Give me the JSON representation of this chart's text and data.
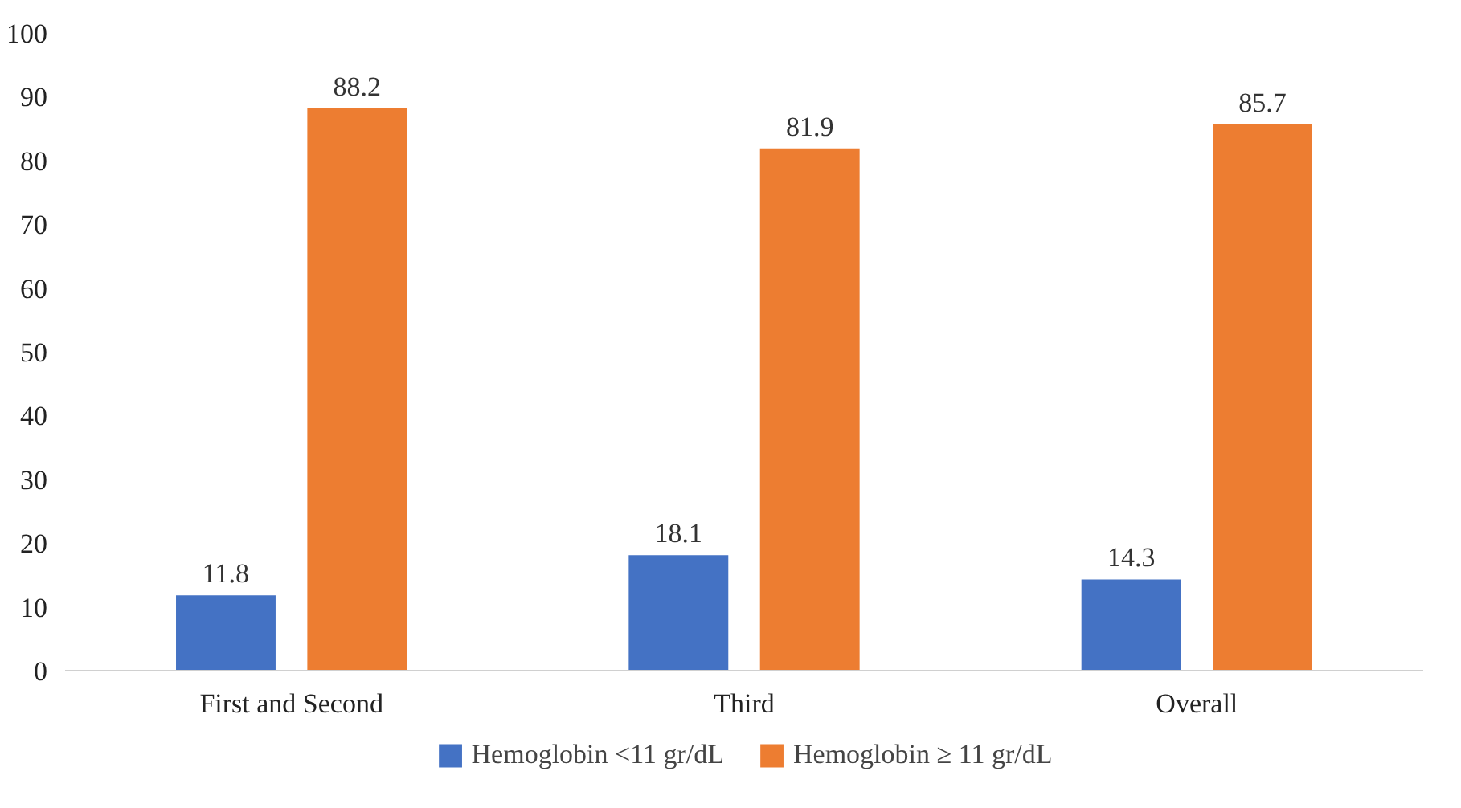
{
  "chart_data": {
    "type": "bar",
    "categories": [
      "First and Second",
      "Third",
      "Overall"
    ],
    "series": [
      {
        "name": "Hemoglobin <11 gr/dL",
        "color": "#4472c4",
        "values": [
          11.8,
          18.1,
          14.3
        ]
      },
      {
        "name": "Hemoglobin ≥ 11 gr/dL",
        "color": "#ed7d31",
        "values": [
          88.2,
          81.9,
          85.7
        ]
      }
    ],
    "ylim": [
      0,
      100
    ],
    "yticks": [
      0,
      10,
      20,
      30,
      40,
      50,
      60,
      70,
      80,
      90,
      100
    ],
    "data_labels": true,
    "grid": false,
    "legend": "bottom"
  }
}
